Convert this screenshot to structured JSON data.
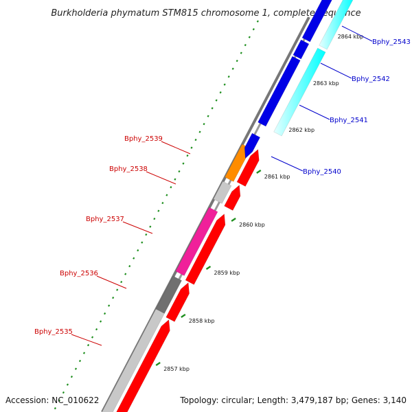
{
  "title": "Burkholderia phymatum STM815 chromosome 1, complete sequence",
  "footer": {
    "accession": "Accession: NC_010622",
    "summary": "Topology: circular; Length: 3,479,187 bp; Genes: 3,140"
  },
  "colors": {
    "backbone": "#8f8f8f",
    "tick": "#1f8f1f",
    "forward_label": "#0000cc",
    "reverse_label": "#cc0000"
  },
  "ticks": [
    {
      "label": "2857 kbp"
    },
    {
      "label": "2858 kbp"
    },
    {
      "label": "2859 kbp"
    },
    {
      "label": "2860 kbp"
    },
    {
      "label": "2861 kbp"
    },
    {
      "label": "2862 kbp"
    },
    {
      "label": "2863 kbp"
    },
    {
      "label": "2864 kbp"
    }
  ],
  "forward_genes": [
    {
      "id": "Bphy_2540",
      "color": "#0000e6"
    },
    {
      "id": "Bphy_2541",
      "color": "#0000e6"
    },
    {
      "id": "Bphy_2542",
      "color": "#0000e6"
    },
    {
      "id": "Bphy_2543",
      "color": "#0000e6"
    }
  ],
  "forward_cds": [
    {
      "color": "#00ffff"
    },
    {
      "color": "#00ffff"
    }
  ],
  "reverse_genes": [
    {
      "id": "Bphy_2535",
      "color": "#ff0000"
    },
    {
      "id": "Bphy_2536",
      "color": "#ff0000"
    },
    {
      "id": "Bphy_2537",
      "color": "#ff0000"
    },
    {
      "id": "Bphy_2538",
      "color": "#ff0000"
    },
    {
      "id": "Bphy_2539",
      "color": "#ff0000"
    }
  ],
  "reverse_features": [
    {
      "color": "#c8c8c8"
    },
    {
      "color": "#707070"
    },
    {
      "color": "#f0209a"
    },
    {
      "color": "#c8c8c8"
    },
    {
      "color": "#ff8c00"
    }
  ]
}
